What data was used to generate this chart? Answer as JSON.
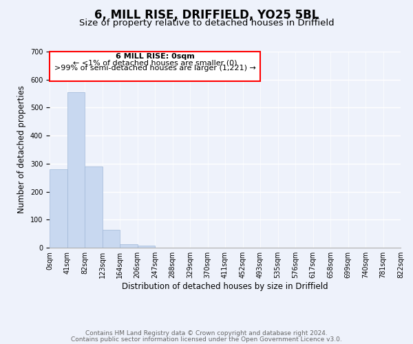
{
  "title": "6, MILL RISE, DRIFFIELD, YO25 5BL",
  "subtitle": "Size of property relative to detached houses in Driffield",
  "xlabel": "Distribution of detached houses by size in Driffield",
  "ylabel": "Number of detached properties",
  "bar_values": [
    280,
    555,
    290,
    65,
    13,
    8,
    0,
    0,
    0,
    0,
    0,
    0,
    0,
    0,
    0,
    0,
    0,
    0,
    0,
    0
  ],
  "bar_color": "#c8d8f0",
  "bar_edge_color": "#a0b8d8",
  "x_labels": [
    "0sqm",
    "41sqm",
    "82sqm",
    "123sqm",
    "164sqm",
    "206sqm",
    "247sqm",
    "288sqm",
    "329sqm",
    "370sqm",
    "411sqm",
    "452sqm",
    "493sqm",
    "535sqm",
    "576sqm",
    "617sqm",
    "658sqm",
    "699sqm",
    "740sqm",
    "781sqm",
    "822sqm"
  ],
  "ylim": [
    0,
    700
  ],
  "yticks": [
    0,
    100,
    200,
    300,
    400,
    500,
    600,
    700
  ],
  "annotation_lines": [
    "6 MILL RISE: 0sqm",
    "← <1% of detached houses are smaller (0)",
    ">99% of semi-detached houses are larger (1,221) →"
  ],
  "footer_line1": "Contains HM Land Registry data © Crown copyright and database right 2024.",
  "footer_line2": "Contains public sector information licensed under the Open Government Licence v3.0.",
  "background_color": "#eef2fb",
  "grid_color": "#ffffff",
  "title_fontsize": 12,
  "subtitle_fontsize": 9.5,
  "axis_label_fontsize": 8.5,
  "tick_fontsize": 7,
  "footer_fontsize": 6.5
}
